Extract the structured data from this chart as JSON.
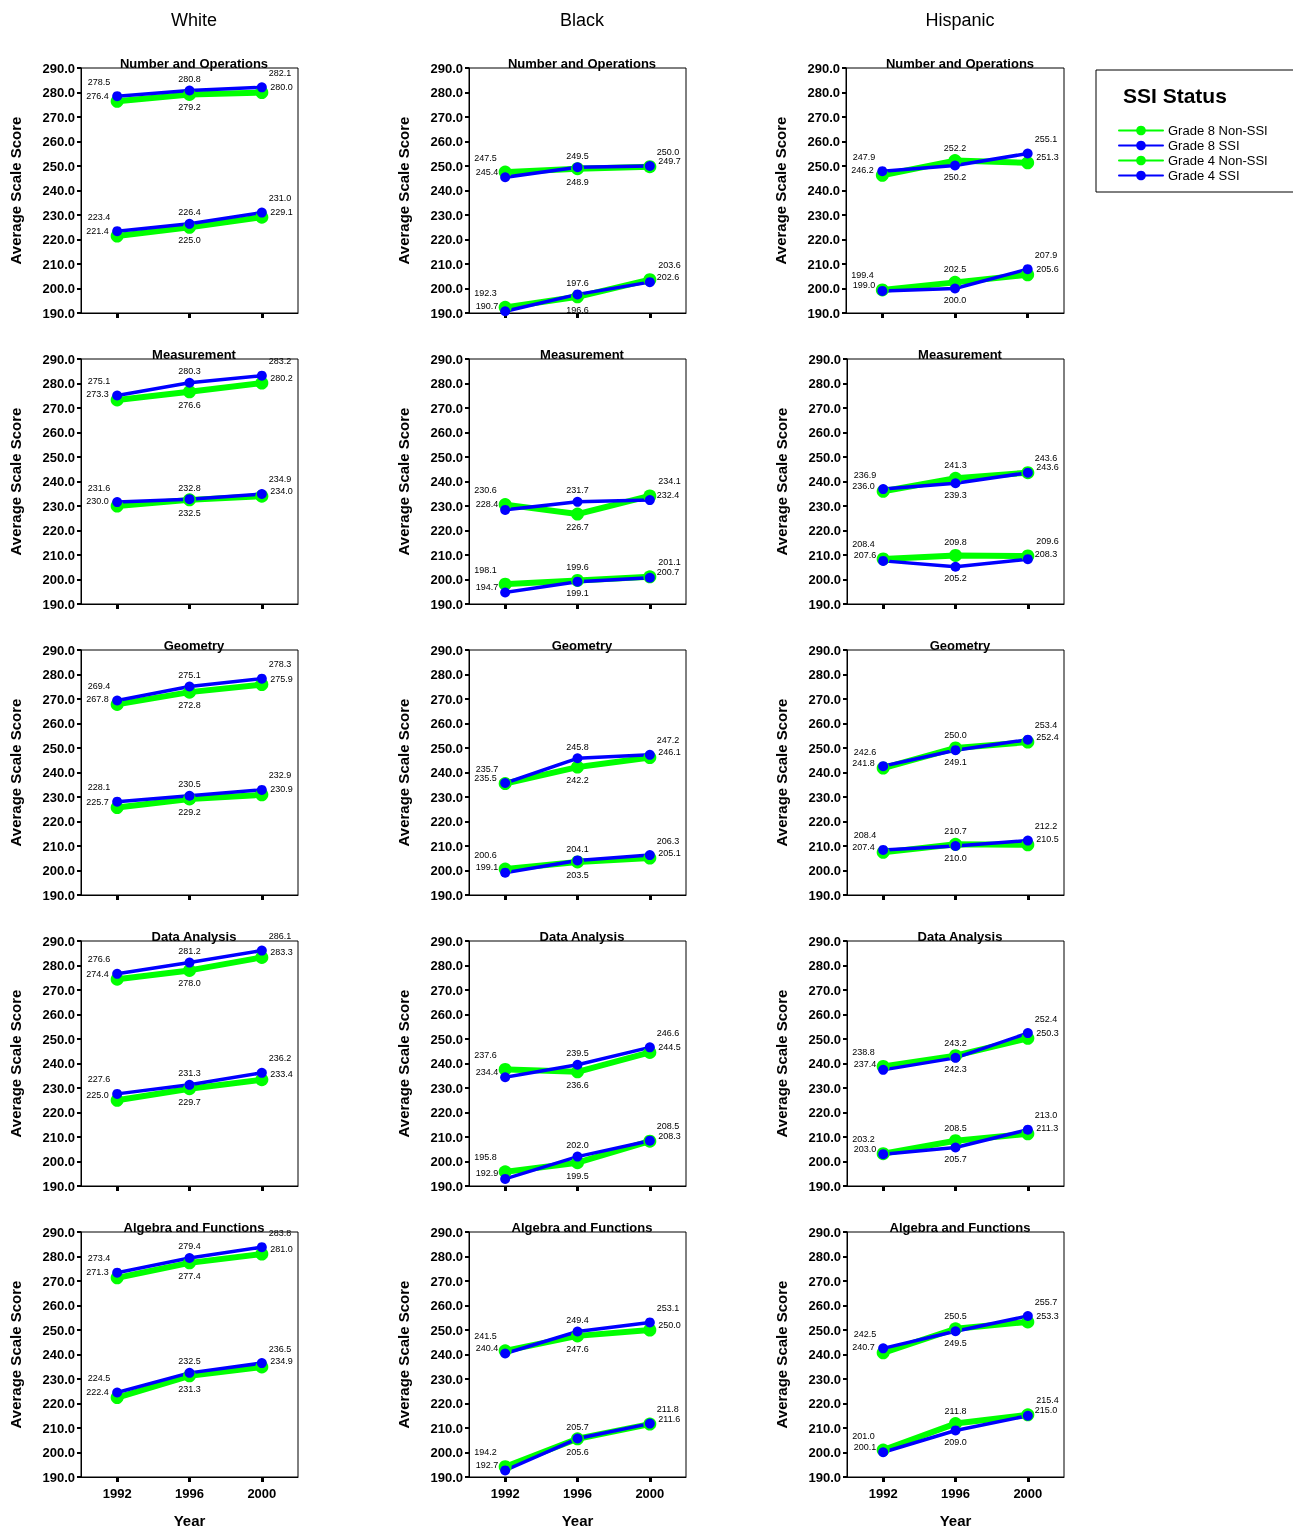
{
  "chart_data": [
    {
      "type": "line",
      "title": "Number and Operations",
      "subtitle": "White",
      "ylabel": "Average Scale Score",
      "categories": [
        "1992",
        "1996",
        "2000"
      ],
      "ylim": [
        190,
        290
      ],
      "yticks": [
        {
          "value": 190,
          "label": "190.0"
        },
        {
          "value": 200,
          "label": "200.0"
        },
        {
          "value": 210,
          "label": "210.0"
        },
        {
          "value": 220,
          "label": "220.0"
        },
        {
          "value": 230,
          "label": "230.0"
        },
        {
          "value": 240,
          "label": "240.0"
        },
        {
          "value": 250,
          "label": "250.0"
        },
        {
          "value": 260,
          "label": "260.0"
        },
        {
          "value": 270,
          "label": "270.0"
        },
        {
          "value": 280,
          "label": "280.0"
        },
        {
          "value": 290,
          "label": "290.0"
        }
      ],
      "marker": "circle",
      "tick_labels": "y",
      "series": [
        {
          "color": "#00ff00",
          "values": [
            276.4,
            279.2,
            280.0
          ],
          "value_labels": [
            "276.4",
            "279.2",
            "280.0"
          ]
        },
        {
          "color": "#0000ff",
          "values": [
            278.5,
            280.8,
            282.1
          ],
          "value_labels": [
            "278.5",
            "280.8",
            "282.1"
          ]
        },
        {
          "color": "#00ff00",
          "values": [
            221.4,
            225.0,
            229.1
          ],
          "value_labels": [
            "221.4",
            "225.0",
            "229.1"
          ]
        },
        {
          "color": "#0000ff",
          "values": [
            223.4,
            226.4,
            231.0
          ],
          "value_labels": [
            "223.4",
            "226.4",
            "231.0"
          ]
        }
      ]
    },
    {
      "type": "line",
      "title": "Number and Operations",
      "subtitle": "Black",
      "ylabel": "Average Scale Score",
      "categories": [
        "1992",
        "1996",
        "2000"
      ],
      "ylim": [
        190,
        290
      ],
      "yticks": [
        {
          "value": 190,
          "label": "190.0"
        },
        {
          "value": 200,
          "label": "200.0"
        },
        {
          "value": 210,
          "label": "210.0"
        },
        {
          "value": 220,
          "label": "220.0"
        },
        {
          "value": 230,
          "label": "230.0"
        },
        {
          "value": 240,
          "label": "240.0"
        },
        {
          "value": 250,
          "label": "250.0"
        },
        {
          "value": 260,
          "label": "260.0"
        },
        {
          "value": 270,
          "label": "270.0"
        },
        {
          "value": 280,
          "label": "280.0"
        },
        {
          "value": 290,
          "label": "290.0"
        }
      ],
      "marker": "circle",
      "tick_labels": "y",
      "series": [
        {
          "color": "#00ff00",
          "values": [
            247.5,
            248.9,
            249.7
          ],
          "value_labels": [
            "247.5",
            "248.9",
            "249.7"
          ]
        },
        {
          "color": "#0000ff",
          "values": [
            245.4,
            249.5,
            250.0
          ],
          "value_labels": [
            "245.4",
            "249.5",
            "250.0"
          ]
        },
        {
          "color": "#00ff00",
          "values": [
            192.3,
            196.6,
            203.6
          ],
          "value_labels": [
            "192.3",
            "196.6",
            "203.6"
          ]
        },
        {
          "color": "#0000ff",
          "values": [
            190.7,
            197.6,
            202.6
          ],
          "value_labels": [
            "190.7",
            "197.6",
            "202.6"
          ]
        }
      ]
    },
    {
      "type": "line",
      "title": "Number and Operations",
      "subtitle": "Hispanic",
      "ylabel": "Average Scale Score",
      "categories": [
        "1992",
        "1996",
        "2000"
      ],
      "ylim": [
        190,
        290
      ],
      "yticks": [
        {
          "value": 190,
          "label": "190.0"
        },
        {
          "value": 200,
          "label": "200.0"
        },
        {
          "value": 210,
          "label": "210.0"
        },
        {
          "value": 220,
          "label": "220.0"
        },
        {
          "value": 230,
          "label": "230.0"
        },
        {
          "value": 240,
          "label": "240.0"
        },
        {
          "value": 250,
          "label": "250.0"
        },
        {
          "value": 260,
          "label": "260.0"
        },
        {
          "value": 270,
          "label": "270.0"
        },
        {
          "value": 280,
          "label": "280.0"
        },
        {
          "value": 290,
          "label": "290.0"
        }
      ],
      "marker": "circle",
      "tick_labels": "y",
      "legend": "right",
      "legend_title": "SSI Status",
      "series": [
        {
          "name": "Grade 8 Non-SSI",
          "color": "#00ff00",
          "values": [
            246.2,
            252.2,
            251.3
          ],
          "value_labels": [
            "246.2",
            "252.2",
            "251.3"
          ]
        },
        {
          "name": "Grade 8 SSI",
          "color": "#0000ff",
          "values": [
            247.9,
            250.2,
            255.1
          ],
          "value_labels": [
            "247.9",
            "250.2",
            "255.1"
          ]
        },
        {
          "name": "Grade 4 Non-SSI",
          "color": "#00ff00",
          "values": [
            199.4,
            202.5,
            205.6
          ],
          "value_labels": [
            "199.4",
            "202.5",
            "205.6"
          ]
        },
        {
          "name": "Grade 4 SSI",
          "color": "#0000ff",
          "values": [
            199.0,
            200.0,
            207.9
          ],
          "value_labels": [
            "199.0",
            "200.0",
            "207.9"
          ]
        }
      ]
    },
    {
      "type": "line",
      "title": "Measurement",
      "ylabel": "Average Scale Score",
      "categories": [
        "1992",
        "1996",
        "2000"
      ],
      "ylim": [
        190,
        290
      ],
      "yticks": [
        {
          "value": 190,
          "label": "190.0"
        },
        {
          "value": 200,
          "label": "200.0"
        },
        {
          "value": 210,
          "label": "210.0"
        },
        {
          "value": 220,
          "label": "220.0"
        },
        {
          "value": 230,
          "label": "230.0"
        },
        {
          "value": 240,
          "label": "240.0"
        },
        {
          "value": 250,
          "label": "250.0"
        },
        {
          "value": 260,
          "label": "260.0"
        },
        {
          "value": 270,
          "label": "270.0"
        },
        {
          "value": 280,
          "label": "280.0"
        },
        {
          "value": 290,
          "label": "290.0"
        }
      ],
      "marker": "circle",
      "tick_labels": "y",
      "series": [
        {
          "color": "#00ff00",
          "values": [
            273.3,
            276.6,
            280.2
          ],
          "value_labels": [
            "273.3",
            "276.6",
            "280.2"
          ]
        },
        {
          "color": "#0000ff",
          "values": [
            275.1,
            280.3,
            283.2
          ],
          "value_labels": [
            "275.1",
            "280.3",
            "283.2"
          ]
        },
        {
          "color": "#00ff00",
          "values": [
            230.0,
            232.5,
            234.0
          ],
          "value_labels": [
            "230.0",
            "232.5",
            "234.0"
          ]
        },
        {
          "color": "#0000ff",
          "values": [
            231.6,
            232.8,
            234.9
          ],
          "value_labels": [
            "231.6",
            "232.8",
            "234.9"
          ]
        }
      ]
    },
    {
      "type": "line",
      "title": "Measurement",
      "ylabel": "Average Scale Score",
      "categories": [
        "1992",
        "1996",
        "2000"
      ],
      "ylim": [
        190,
        290
      ],
      "yticks": [
        {
          "value": 190,
          "label": "190.0"
        },
        {
          "value": 200,
          "label": "200.0"
        },
        {
          "value": 210,
          "label": "210.0"
        },
        {
          "value": 220,
          "label": "220.0"
        },
        {
          "value": 230,
          "label": "230.0"
        },
        {
          "value": 240,
          "label": "240.0"
        },
        {
          "value": 250,
          "label": "250.0"
        },
        {
          "value": 260,
          "label": "260.0"
        },
        {
          "value": 270,
          "label": "270.0"
        },
        {
          "value": 280,
          "label": "280.0"
        },
        {
          "value": 290,
          "label": "290.0"
        }
      ],
      "marker": "circle",
      "tick_labels": "y",
      "series": [
        {
          "color": "#00ff00",
          "values": [
            230.6,
            226.7,
            234.1
          ],
          "value_labels": [
            "230.6",
            "226.7",
            "234.1"
          ]
        },
        {
          "color": "#0000ff",
          "values": [
            228.4,
            231.7,
            232.4
          ],
          "value_labels": [
            "228.4",
            "231.7",
            "232.4"
          ]
        },
        {
          "color": "#00ff00",
          "values": [
            198.1,
            199.6,
            201.1
          ],
          "value_labels": [
            "198.1",
            "199.6",
            "201.1"
          ]
        },
        {
          "color": "#0000ff",
          "values": [
            194.7,
            199.1,
            200.7
          ],
          "value_labels": [
            "194.7",
            "199.1",
            "200.7"
          ]
        }
      ]
    },
    {
      "type": "line",
      "title": "Measurement",
      "ylabel": "Average Scale Score",
      "categories": [
        "1992",
        "1996",
        "2000"
      ],
      "ylim": [
        190,
        290
      ],
      "yticks": [
        {
          "value": 190,
          "label": "190.0"
        },
        {
          "value": 200,
          "label": "200.0"
        },
        {
          "value": 210,
          "label": "210.0"
        },
        {
          "value": 220,
          "label": "220.0"
        },
        {
          "value": 230,
          "label": "230.0"
        },
        {
          "value": 240,
          "label": "240.0"
        },
        {
          "value": 250,
          "label": "250.0"
        },
        {
          "value": 260,
          "label": "260.0"
        },
        {
          "value": 270,
          "label": "270.0"
        },
        {
          "value": 280,
          "label": "280.0"
        },
        {
          "value": 290,
          "label": "290.0"
        }
      ],
      "marker": "circle",
      "tick_labels": "y",
      "series": [
        {
          "color": "#00ff00",
          "values": [
            236.0,
            241.3,
            243.6
          ],
          "value_labels": [
            "236.0",
            "241.3",
            "243.6"
          ]
        },
        {
          "color": "#0000ff",
          "values": [
            236.9,
            239.3,
            243.6
          ],
          "value_labels": [
            "236.9",
            "239.3",
            "243.6"
          ]
        },
        {
          "color": "#00ff00",
          "values": [
            208.4,
            209.8,
            209.6
          ],
          "value_labels": [
            "208.4",
            "209.8",
            "209.6"
          ]
        },
        {
          "color": "#0000ff",
          "values": [
            207.6,
            205.2,
            208.3
          ],
          "value_labels": [
            "207.6",
            "205.2",
            "208.3"
          ]
        }
      ]
    },
    {
      "type": "line",
      "title": "Geometry",
      "ylabel": "Average Scale Score",
      "categories": [
        "1992",
        "1996",
        "2000"
      ],
      "ylim": [
        190,
        290
      ],
      "yticks": [
        {
          "value": 190,
          "label": "190.0"
        },
        {
          "value": 200,
          "label": "200.0"
        },
        {
          "value": 210,
          "label": "210.0"
        },
        {
          "value": 220,
          "label": "220.0"
        },
        {
          "value": 230,
          "label": "230.0"
        },
        {
          "value": 240,
          "label": "240.0"
        },
        {
          "value": 250,
          "label": "250.0"
        },
        {
          "value": 260,
          "label": "260.0"
        },
        {
          "value": 270,
          "label": "270.0"
        },
        {
          "value": 280,
          "label": "280.0"
        },
        {
          "value": 290,
          "label": "290.0"
        }
      ],
      "marker": "circle",
      "tick_labels": "y",
      "series": [
        {
          "color": "#00ff00",
          "values": [
            267.8,
            272.8,
            275.9
          ],
          "value_labels": [
            "267.8",
            "272.8",
            "275.9"
          ]
        },
        {
          "color": "#0000ff",
          "values": [
            269.4,
            275.1,
            278.3
          ],
          "value_labels": [
            "269.4",
            "275.1",
            "278.3"
          ]
        },
        {
          "color": "#00ff00",
          "values": [
            225.7,
            229.2,
            230.9
          ],
          "value_labels": [
            "225.7",
            "229.2",
            "230.9"
          ]
        },
        {
          "color": "#0000ff",
          "values": [
            228.1,
            230.5,
            232.9
          ],
          "value_labels": [
            "228.1",
            "230.5",
            "232.9"
          ]
        }
      ]
    },
    {
      "type": "line",
      "title": "Geometry",
      "ylabel": "Average Scale Score",
      "categories": [
        "1992",
        "1996",
        "2000"
      ],
      "ylim": [
        190,
        290
      ],
      "yticks": [
        {
          "value": 190,
          "label": "190.0"
        },
        {
          "value": 200,
          "label": "200.0"
        },
        {
          "value": 210,
          "label": "210.0"
        },
        {
          "value": 220,
          "label": "220.0"
        },
        {
          "value": 230,
          "label": "230.0"
        },
        {
          "value": 240,
          "label": "240.0"
        },
        {
          "value": 250,
          "label": "250.0"
        },
        {
          "value": 260,
          "label": "260.0"
        },
        {
          "value": 270,
          "label": "270.0"
        },
        {
          "value": 280,
          "label": "280.0"
        },
        {
          "value": 290,
          "label": "290.0"
        }
      ],
      "marker": "circle",
      "tick_labels": "y",
      "series": [
        {
          "color": "#00ff00",
          "values": [
            235.5,
            242.2,
            246.1
          ],
          "value_labels": [
            "235.5",
            "242.2",
            "246.1"
          ]
        },
        {
          "color": "#0000ff",
          "values": [
            235.7,
            245.8,
            247.2
          ],
          "value_labels": [
            "235.7",
            "245.8",
            "247.2"
          ]
        },
        {
          "color": "#00ff00",
          "values": [
            200.6,
            203.5,
            205.1
          ],
          "value_labels": [
            "200.6",
            "203.5",
            "205.1"
          ]
        },
        {
          "color": "#0000ff",
          "values": [
            199.1,
            204.1,
            206.3
          ],
          "value_labels": [
            "199.1",
            "204.1",
            "206.3"
          ]
        }
      ]
    },
    {
      "type": "line",
      "title": "Geometry",
      "ylabel": "Average Scale Score",
      "categories": [
        "1992",
        "1996",
        "2000"
      ],
      "ylim": [
        190,
        290
      ],
      "yticks": [
        {
          "value": 190,
          "label": "190.0"
        },
        {
          "value": 200,
          "label": "200.0"
        },
        {
          "value": 210,
          "label": "210.0"
        },
        {
          "value": 220,
          "label": "220.0"
        },
        {
          "value": 230,
          "label": "230.0"
        },
        {
          "value": 240,
          "label": "240.0"
        },
        {
          "value": 250,
          "label": "250.0"
        },
        {
          "value": 260,
          "label": "260.0"
        },
        {
          "value": 270,
          "label": "270.0"
        },
        {
          "value": 280,
          "label": "280.0"
        },
        {
          "value": 290,
          "label": "290.0"
        }
      ],
      "marker": "circle",
      "tick_labels": "y",
      "series": [
        {
          "color": "#00ff00",
          "values": [
            241.8,
            250.0,
            252.4
          ],
          "value_labels": [
            "241.8",
            "250.0",
            "252.4"
          ]
        },
        {
          "color": "#0000ff",
          "values": [
            242.6,
            249.1,
            253.4
          ],
          "value_labels": [
            "242.6",
            "249.1",
            "253.4"
          ]
        },
        {
          "color": "#00ff00",
          "values": [
            207.4,
            210.7,
            210.5
          ],
          "value_labels": [
            "207.4",
            "210.7",
            "210.5"
          ]
        },
        {
          "color": "#0000ff",
          "values": [
            208.4,
            210.0,
            212.2
          ],
          "value_labels": [
            "208.4",
            "210.0",
            "212.2"
          ]
        }
      ]
    },
    {
      "type": "line",
      "title": "Data Analysis",
      "ylabel": "Average Scale Score",
      "categories": [
        "1992",
        "1996",
        "2000"
      ],
      "ylim": [
        190,
        290
      ],
      "yticks": [
        {
          "value": 190,
          "label": "190.0"
        },
        {
          "value": 200,
          "label": "200.0"
        },
        {
          "value": 210,
          "label": "210.0"
        },
        {
          "value": 220,
          "label": "220.0"
        },
        {
          "value": 230,
          "label": "230.0"
        },
        {
          "value": 240,
          "label": "240.0"
        },
        {
          "value": 250,
          "label": "250.0"
        },
        {
          "value": 260,
          "label": "260.0"
        },
        {
          "value": 270,
          "label": "270.0"
        },
        {
          "value": 280,
          "label": "280.0"
        },
        {
          "value": 290,
          "label": "290.0"
        }
      ],
      "marker": "circle",
      "tick_labels": "y",
      "series": [
        {
          "color": "#00ff00",
          "values": [
            274.4,
            278.0,
            283.3
          ],
          "value_labels": [
            "274.4",
            "278.0",
            "283.3"
          ]
        },
        {
          "color": "#0000ff",
          "values": [
            276.6,
            281.2,
            286.1
          ],
          "value_labels": [
            "276.6",
            "281.2",
            "286.1"
          ]
        },
        {
          "color": "#00ff00",
          "values": [
            225.0,
            229.7,
            233.4
          ],
          "value_labels": [
            "225.0",
            "229.7",
            "233.4"
          ]
        },
        {
          "color": "#0000ff",
          "values": [
            227.6,
            231.3,
            236.2
          ],
          "value_labels": [
            "227.6",
            "231.3",
            "236.2"
          ]
        }
      ]
    },
    {
      "type": "line",
      "title": "Data Analysis",
      "ylabel": "Average Scale Score",
      "categories": [
        "1992",
        "1996",
        "2000"
      ],
      "ylim": [
        190,
        290
      ],
      "yticks": [
        {
          "value": 190,
          "label": "190.0"
        },
        {
          "value": 200,
          "label": "200.0"
        },
        {
          "value": 210,
          "label": "210.0"
        },
        {
          "value": 220,
          "label": "220.0"
        },
        {
          "value": 230,
          "label": "230.0"
        },
        {
          "value": 240,
          "label": "240.0"
        },
        {
          "value": 250,
          "label": "250.0"
        },
        {
          "value": 260,
          "label": "260.0"
        },
        {
          "value": 270,
          "label": "270.0"
        },
        {
          "value": 280,
          "label": "280.0"
        },
        {
          "value": 290,
          "label": "290.0"
        }
      ],
      "marker": "circle",
      "tick_labels": "y",
      "series": [
        {
          "color": "#00ff00",
          "values": [
            237.6,
            236.6,
            244.5
          ],
          "value_labels": [
            "237.6",
            "236.6",
            "244.5"
          ]
        },
        {
          "color": "#0000ff",
          "values": [
            234.4,
            239.5,
            246.6
          ],
          "value_labels": [
            "234.4",
            "239.5",
            "246.6"
          ]
        },
        {
          "color": "#00ff00",
          "values": [
            195.8,
            199.5,
            208.3
          ],
          "value_labels": [
            "195.8",
            "199.5",
            "208.3"
          ]
        },
        {
          "color": "#0000ff",
          "values": [
            192.9,
            202.0,
            208.5
          ],
          "value_labels": [
            "192.9",
            "202.0",
            "208.5"
          ]
        }
      ]
    },
    {
      "type": "line",
      "title": "Data Analysis",
      "ylabel": "Average Scale Score",
      "categories": [
        "1992",
        "1996",
        "2000"
      ],
      "ylim": [
        190,
        290
      ],
      "yticks": [
        {
          "value": 190,
          "label": "190.0"
        },
        {
          "value": 200,
          "label": "200.0"
        },
        {
          "value": 210,
          "label": "210.0"
        },
        {
          "value": 220,
          "label": "220.0"
        },
        {
          "value": 230,
          "label": "230.0"
        },
        {
          "value": 240,
          "label": "240.0"
        },
        {
          "value": 250,
          "label": "250.0"
        },
        {
          "value": 260,
          "label": "260.0"
        },
        {
          "value": 270,
          "label": "270.0"
        },
        {
          "value": 280,
          "label": "280.0"
        },
        {
          "value": 290,
          "label": "290.0"
        }
      ],
      "marker": "circle",
      "tick_labels": "y",
      "series": [
        {
          "color": "#00ff00",
          "values": [
            238.8,
            243.2,
            250.3
          ],
          "value_labels": [
            "238.8",
            "243.2",
            "250.3"
          ]
        },
        {
          "color": "#0000ff",
          "values": [
            237.4,
            242.3,
            252.4
          ],
          "value_labels": [
            "237.4",
            "242.3",
            "252.4"
          ]
        },
        {
          "color": "#00ff00",
          "values": [
            203.2,
            208.5,
            211.3
          ],
          "value_labels": [
            "203.2",
            "208.5",
            "211.3"
          ]
        },
        {
          "color": "#0000ff",
          "values": [
            203.0,
            205.7,
            213.0
          ],
          "value_labels": [
            "203.0",
            "205.7",
            "213.0"
          ]
        }
      ]
    },
    {
      "type": "line",
      "title": "Algebra and Functions",
      "ylabel": "Average Scale Score",
      "xlabel": "Year",
      "categories": [
        "1992",
        "1996",
        "2000"
      ],
      "ylim": [
        190,
        290
      ],
      "yticks": [
        {
          "value": 190,
          "label": "190.0"
        },
        {
          "value": 200,
          "label": "200.0"
        },
        {
          "value": 210,
          "label": "210.0"
        },
        {
          "value": 220,
          "label": "220.0"
        },
        {
          "value": 230,
          "label": "230.0"
        },
        {
          "value": 240,
          "label": "240.0"
        },
        {
          "value": 250,
          "label": "250.0"
        },
        {
          "value": 260,
          "label": "260.0"
        },
        {
          "value": 270,
          "label": "270.0"
        },
        {
          "value": 280,
          "label": "280.0"
        },
        {
          "value": 290,
          "label": "290.0"
        }
      ],
      "marker": "circle",
      "series": [
        {
          "color": "#00ff00",
          "values": [
            271.3,
            277.4,
            281.0
          ],
          "value_labels": [
            "271.3",
            "277.4",
            "281.0"
          ]
        },
        {
          "color": "#0000ff",
          "values": [
            273.4,
            279.4,
            283.8
          ],
          "value_labels": [
            "273.4",
            "279.4",
            "283.8"
          ]
        },
        {
          "color": "#00ff00",
          "values": [
            222.4,
            231.3,
            234.9
          ],
          "value_labels": [
            "222.4",
            "231.3",
            "234.9"
          ]
        },
        {
          "color": "#0000ff",
          "values": [
            224.5,
            232.5,
            236.5
          ],
          "value_labels": [
            "224.5",
            "232.5",
            "236.5"
          ]
        }
      ]
    },
    {
      "type": "line",
      "title": "Algebra and Functions",
      "ylabel": "Average Scale Score",
      "xlabel": "Year",
      "categories": [
        "1992",
        "1996",
        "2000"
      ],
      "ylim": [
        190,
        290
      ],
      "yticks": [
        {
          "value": 190,
          "label": "190.0"
        },
        {
          "value": 200,
          "label": "200.0"
        },
        {
          "value": 210,
          "label": "210.0"
        },
        {
          "value": 220,
          "label": "220.0"
        },
        {
          "value": 230,
          "label": "230.0"
        },
        {
          "value": 240,
          "label": "240.0"
        },
        {
          "value": 250,
          "label": "250.0"
        },
        {
          "value": 260,
          "label": "260.0"
        },
        {
          "value": 270,
          "label": "270.0"
        },
        {
          "value": 280,
          "label": "280.0"
        },
        {
          "value": 290,
          "label": "290.0"
        }
      ],
      "marker": "circle",
      "series": [
        {
          "color": "#00ff00",
          "values": [
            241.5,
            247.6,
            250.0
          ],
          "value_labels": [
            "241.5",
            "247.6",
            "250.0"
          ]
        },
        {
          "color": "#0000ff",
          "values": [
            240.4,
            249.4,
            253.1
          ],
          "value_labels": [
            "240.4",
            "249.4",
            "253.1"
          ]
        },
        {
          "color": "#00ff00",
          "values": [
            194.2,
            205.6,
            211.6
          ],
          "value_labels": [
            "194.2",
            "205.6",
            "211.6"
          ]
        },
        {
          "color": "#0000ff",
          "values": [
            192.7,
            205.7,
            211.8
          ],
          "value_labels": [
            "192.7",
            "205.7",
            "211.8"
          ]
        }
      ]
    },
    {
      "type": "line",
      "title": "Algebra and Functions",
      "ylabel": "Average Scale Score",
      "xlabel": "Year",
      "categories": [
        "1992",
        "1996",
        "2000"
      ],
      "ylim": [
        190,
        290
      ],
      "yticks": [
        {
          "value": 190,
          "label": "190.0"
        },
        {
          "value": 200,
          "label": "200.0"
        },
        {
          "value": 210,
          "label": "210.0"
        },
        {
          "value": 220,
          "label": "220.0"
        },
        {
          "value": 230,
          "label": "230.0"
        },
        {
          "value": 240,
          "label": "240.0"
        },
        {
          "value": 250,
          "label": "250.0"
        },
        {
          "value": 260,
          "label": "260.0"
        },
        {
          "value": 270,
          "label": "270.0"
        },
        {
          "value": 280,
          "label": "280.0"
        },
        {
          "value": 290,
          "label": "290.0"
        }
      ],
      "marker": "circle",
      "series": [
        {
          "color": "#00ff00",
          "values": [
            240.7,
            250.5,
            253.3
          ],
          "value_labels": [
            "240.7",
            "250.5",
            "253.3"
          ]
        },
        {
          "color": "#0000ff",
          "values": [
            242.5,
            249.5,
            255.7
          ],
          "value_labels": [
            "242.5",
            "249.5",
            "255.7"
          ]
        },
        {
          "color": "#00ff00",
          "values": [
            201.0,
            211.8,
            215.4
          ],
          "value_labels": [
            "201.0",
            "211.8",
            "215.4"
          ]
        },
        {
          "color": "#0000ff",
          "values": [
            200.1,
            209.0,
            215.0
          ],
          "value_labels": [
            "200.1",
            "209.0",
            "215.0"
          ]
        }
      ]
    }
  ]
}
